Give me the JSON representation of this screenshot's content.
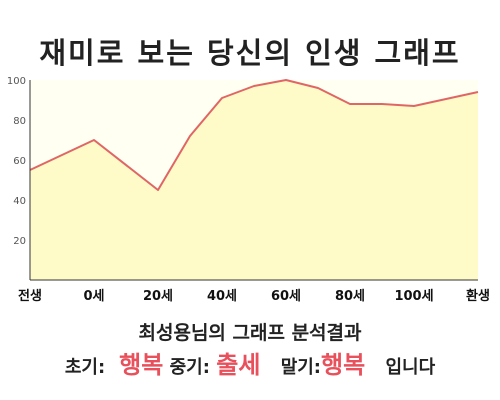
{
  "chart_data": {
    "type": "area",
    "title": "재미로 보는 당신의 인생 그래프",
    "categories": [
      "전생",
      "0세",
      "20세",
      "40세",
      "60세",
      "80세",
      "100세",
      "환생"
    ],
    "x": [
      -20,
      0,
      20,
      30,
      40,
      50,
      60,
      70,
      80,
      90,
      100,
      120
    ],
    "y": [
      55,
      70,
      45,
      72,
      91,
      97,
      100,
      96,
      88,
      88,
      87,
      94
    ],
    "ylim": [
      0,
      100
    ],
    "xlim": [
      -20,
      120
    ],
    "yticks": [
      20,
      40,
      60,
      80,
      100
    ],
    "grid": false,
    "line_color": "#e06666",
    "fill_color": "#fffbc8"
  },
  "summary": {
    "title": "최성용님의 그래프 분석결과",
    "early_label": "초기:",
    "early_value": "행복",
    "middle_label": "중기:",
    "middle_value": "출세",
    "late_label": "말기:",
    "late_value": "행복",
    "ending": "입니다"
  },
  "colors": {
    "highlight": "#e8505b"
  }
}
